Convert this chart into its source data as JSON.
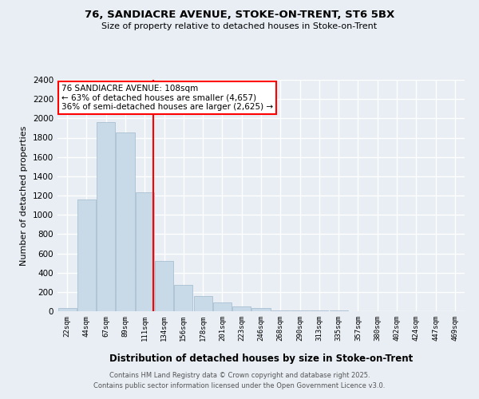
{
  "title_line1": "76, SANDIACRE AVENUE, STOKE-ON-TRENT, ST6 5BX",
  "title_line2": "Size of property relative to detached houses in Stoke-on-Trent",
  "xlabel": "Distribution of detached houses by size in Stoke-on-Trent",
  "ylabel": "Number of detached properties",
  "bin_labels": [
    "22sqm",
    "44sqm",
    "67sqm",
    "89sqm",
    "111sqm",
    "134sqm",
    "156sqm",
    "178sqm",
    "201sqm",
    "223sqm",
    "246sqm",
    "268sqm",
    "290sqm",
    "313sqm",
    "335sqm",
    "357sqm",
    "380sqm",
    "402sqm",
    "424sqm",
    "447sqm",
    "469sqm"
  ],
  "bar_heights": [
    30,
    1160,
    1960,
    1855,
    1230,
    520,
    270,
    155,
    95,
    50,
    35,
    10,
    10,
    5,
    5,
    2,
    2,
    2,
    0,
    0,
    0
  ],
  "bar_color": "#c8d9e8",
  "bar_edge_color": "#a0b8cc",
  "red_line_bin_index": 4,
  "annotation_text_line1": "76 SANDIACRE AVENUE: 108sqm",
  "annotation_text_line2": "← 63% of detached houses are smaller (4,657)",
  "annotation_text_line3": "36% of semi-detached houses are larger (2,625) →",
  "annotation_box_color": "white",
  "annotation_box_edge_color": "red",
  "ylim": [
    0,
    2400
  ],
  "yticks": [
    0,
    200,
    400,
    600,
    800,
    1000,
    1200,
    1400,
    1600,
    1800,
    2000,
    2200,
    2400
  ],
  "footer_line1": "Contains HM Land Registry data © Crown copyright and database right 2025.",
  "footer_line2": "Contains public sector information licensed under the Open Government Licence v3.0.",
  "background_color": "#e8eef4",
  "grid_color": "#ffffff"
}
